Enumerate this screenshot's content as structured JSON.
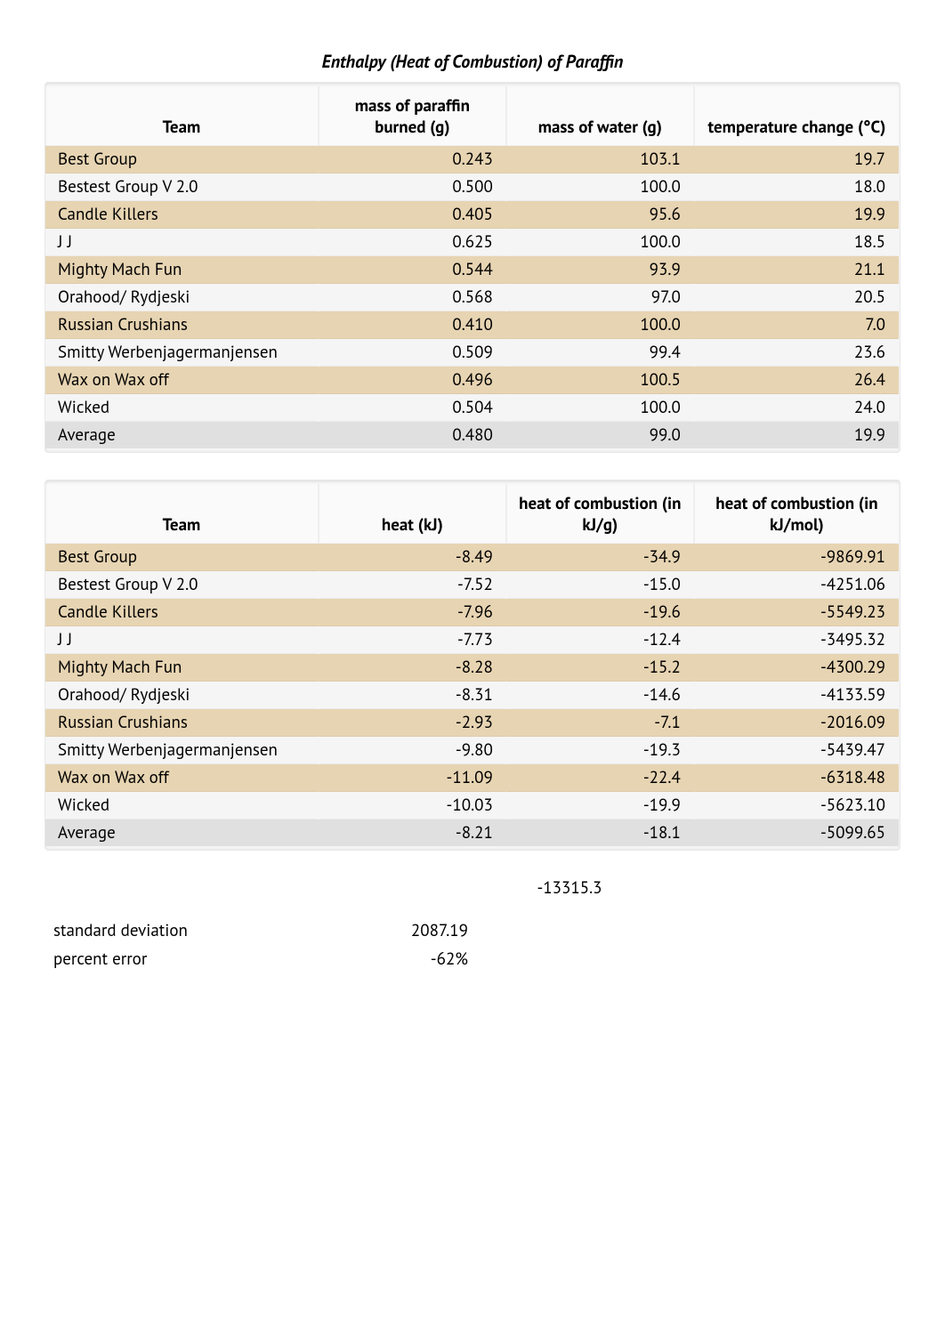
{
  "title": "Enthalpy (Heat of Combustion) of Paraffin",
  "table1": {
    "columns": [
      "Team",
      "mass of paraffin burned (g)",
      "mass of water (g)",
      "temperature change (°C)"
    ],
    "rows": [
      [
        "Best Group",
        "0.243",
        "103.1",
        "19.7"
      ],
      [
        "Bestest Group V 2.0",
        "0.500",
        "100.0",
        "18.0"
      ],
      [
        "Candle Killers",
        "0.405",
        "95.6",
        "19.9"
      ],
      [
        "J J",
        "0.625",
        "100.0",
        "18.5"
      ],
      [
        "Mighty Mach Fun",
        "0.544",
        "93.9",
        "21.1"
      ],
      [
        "Orahood/ Rydjeski",
        "0.568",
        "97.0",
        "20.5"
      ],
      [
        "Russian Crushians",
        "0.410",
        "100.0",
        "7.0"
      ],
      [
        "Smitty Werbenjagermanjensen",
        "0.509",
        "99.4",
        "23.6"
      ],
      [
        "Wax on Wax off",
        "0.496",
        "100.5",
        "26.4"
      ],
      [
        "Wicked",
        "0.504",
        "100.0",
        "24.0"
      ]
    ],
    "average": [
      "Average",
      "0.480",
      "99.0",
      "19.9"
    ]
  },
  "table2": {
    "columns": [
      "Team",
      "heat (kJ)",
      "heat of combustion (in kJ/g)",
      "heat of combustion (in kJ/mol)"
    ],
    "rows": [
      [
        "Best Group",
        "-8.49",
        "-34.9",
        "-9869.91"
      ],
      [
        "Bestest Group V 2.0",
        "-7.52",
        "-15.0",
        "-4251.06"
      ],
      [
        "Candle Killers",
        "-7.96",
        "-19.6",
        "-5549.23"
      ],
      [
        "J J",
        "-7.73",
        "-12.4",
        "-3495.32"
      ],
      [
        "Mighty Mach Fun",
        "-8.28",
        "-15.2",
        "-4300.29"
      ],
      [
        "Orahood/ Rydjeski",
        "-8.31",
        "-14.6",
        "-4133.59"
      ],
      [
        "Russian Crushians",
        "-2.93",
        "-7.1",
        "-2016.09"
      ],
      [
        "Smitty Werbenjagermanjensen",
        "-9.80",
        "-19.3",
        "-5439.47"
      ],
      [
        "Wax on Wax off",
        "-11.09",
        "-22.4",
        "-6318.48"
      ],
      [
        "Wicked",
        "-10.03",
        "-19.9",
        "-5623.10"
      ]
    ],
    "average": [
      "Average",
      "-8.21",
      "-18.1",
      "-5099.65"
    ]
  },
  "lone_value": "-13315.3",
  "stats": {
    "stdev_label": "standard deviation",
    "stdev_value": "2087.19",
    "pcterr_label": "percent error",
    "pcterr_value": "-62%"
  },
  "colors": {
    "row_odd": "#e7d4b2",
    "row_even": "#f5f5f5",
    "row_avg": "#e0e0e0",
    "background": "#ffffff"
  }
}
